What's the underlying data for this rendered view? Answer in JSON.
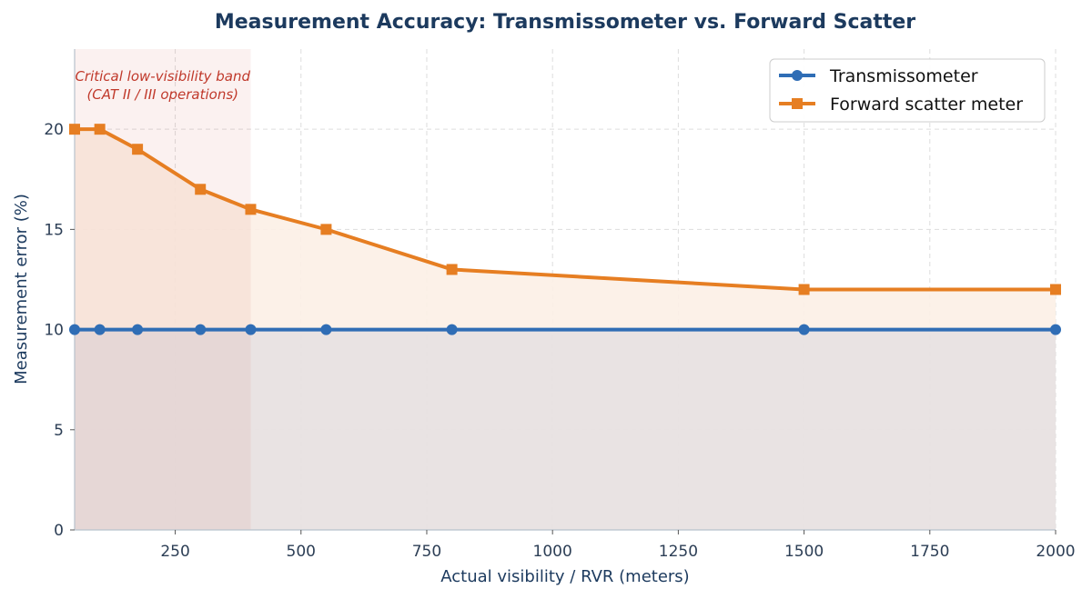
{
  "chart_data": {
    "type": "line",
    "title": "Measurement Accuracy: Transmissometer vs. Forward Scatter",
    "xlabel": "Actual visibility / RVR (meters)",
    "ylabel": "Measurement error (%)",
    "xlim": [
      50,
      2000
    ],
    "ylim": [
      0,
      24
    ],
    "xticks": [
      250,
      500,
      750,
      1000,
      1250,
      1500,
      1750,
      2000
    ],
    "yticks": [
      0,
      5,
      10,
      15,
      20
    ],
    "grid": true,
    "legend_position": "top-right",
    "x": [
      50,
      100,
      175,
      300,
      400,
      550,
      800,
      1500,
      2000
    ],
    "series": [
      {
        "name": "Transmissometer",
        "values": [
          10,
          10,
          10,
          10,
          10,
          10,
          10,
          10,
          10
        ],
        "color": "#2f6db5",
        "marker": "circle"
      },
      {
        "name": "Forward scatter meter",
        "values": [
          20,
          20,
          19,
          17,
          16,
          15,
          13,
          12,
          12
        ],
        "color": "#e67e22",
        "marker": "square"
      }
    ],
    "band": {
      "x_range": [
        50,
        400
      ],
      "label_line1": "Critical low-visibility band",
      "label_line2": "(CAT II / III operations)",
      "color": "#c0392b"
    }
  }
}
